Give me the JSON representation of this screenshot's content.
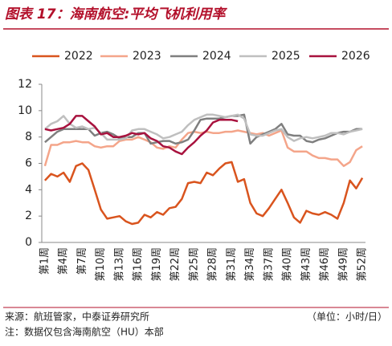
{
  "chart_data": {
    "type": "line",
    "title": "图表 17：海南航空:平均飞机利用率",
    "source": "来源：航班管家，中泰证券研究所",
    "unit": "（单位：小时/日）",
    "note": "注：数据仅包含海南航空（HU）本部",
    "categories": [
      "第1周",
      null,
      null,
      "第4周",
      null,
      null,
      "第7周",
      null,
      null,
      "第10周",
      null,
      null,
      "第13周",
      null,
      null,
      "第16周",
      null,
      null,
      "第19周",
      null,
      null,
      "第22周",
      null,
      null,
      "第25周",
      null,
      null,
      "第28周",
      null,
      null,
      "第31周",
      null,
      null,
      "第34周",
      null,
      null,
      "第37周",
      null,
      null,
      "第40周",
      null,
      null,
      "第43周",
      null,
      null,
      "第46周",
      null,
      null,
      "第49周",
      null,
      null,
      "第52周"
    ],
    "ylim": [
      0,
      12
    ],
    "yticks": [
      0,
      2,
      4,
      6,
      8,
      10,
      12
    ],
    "grid": false,
    "series": [
      {
        "name": "2022",
        "color": "#d9541e",
        "values": [
          4.7,
          5.2,
          5.0,
          5.3,
          4.6,
          5.8,
          6.0,
          5.5,
          4.0,
          2.5,
          1.8,
          1.9,
          2.0,
          1.6,
          1.4,
          1.5,
          2.1,
          1.9,
          2.3,
          2.1,
          2.6,
          2.7,
          3.3,
          4.5,
          4.6,
          4.5,
          5.3,
          5.1,
          5.6,
          6.0,
          6.1,
          4.6,
          4.8,
          3.0,
          2.2,
          2.0,
          2.6,
          3.3,
          4.0,
          3.0,
          1.9,
          1.5,
          2.4,
          2.2,
          2.1,
          2.3,
          2.1,
          1.8,
          3.0,
          4.7,
          4.1,
          4.9
        ]
      },
      {
        "name": "2023",
        "color": "#f4a58a",
        "values": [
          5.8,
          7.4,
          7.4,
          7.6,
          7.6,
          7.7,
          7.6,
          7.6,
          7.3,
          7.2,
          7.3,
          7.3,
          7.7,
          7.8,
          7.8,
          8.0,
          7.8,
          7.6,
          7.2,
          7.1,
          7.3,
          7.2,
          7.8,
          8.3,
          8.4,
          8.3,
          8.4,
          8.3,
          8.3,
          8.4,
          8.4,
          8.5,
          8.4,
          8.3,
          8.2,
          8.3,
          8.1,
          8.3,
          8.5,
          7.2,
          6.9,
          6.9,
          6.9,
          6.6,
          6.4,
          6.4,
          6.3,
          6.3,
          5.8,
          6.1,
          7.0,
          7.3
        ]
      },
      {
        "name": "2024",
        "color": "#7f7f7f",
        "values": [
          7.6,
          8.0,
          8.4,
          8.6,
          8.6,
          8.6,
          8.6,
          8.6,
          8.1,
          8.3,
          8.4,
          8.2,
          7.9,
          8.0,
          8.0,
          8.3,
          8.3,
          7.5,
          7.6,
          7.7,
          7.7,
          7.5,
          7.6,
          7.8,
          8.5,
          9.3,
          9.4,
          9.4,
          9.4,
          9.5,
          9.6,
          9.6,
          9.7,
          7.5,
          8.0,
          8.2,
          8.4,
          8.6,
          9.0,
          8.2,
          8.1,
          8.1,
          7.7,
          7.6,
          7.8,
          7.9,
          8.1,
          8.3,
          8.4,
          8.4,
          8.6,
          8.6
        ]
      },
      {
        "name": "2025",
        "color": "#bfbfbf",
        "values": [
          8.6,
          9.0,
          9.2,
          9.6,
          9.0,
          8.7,
          8.8,
          8.6,
          8.7,
          8.3,
          7.8,
          7.8,
          7.8,
          7.9,
          8.5,
          8.6,
          8.6,
          8.4,
          8.2,
          7.9,
          8.0,
          8.2,
          8.4,
          8.9,
          9.3,
          9.5,
          9.7,
          9.7,
          9.6,
          9.5,
          9.6,
          9.7,
          9.4,
          8.2,
          8.1,
          8.1,
          8.3,
          8.5,
          8.6,
          8.0,
          7.7,
          7.9,
          8.0,
          7.9,
          8.0,
          8.1,
          8.3,
          8.3,
          8.2,
          8.4,
          8.5,
          8.6
        ]
      },
      {
        "name": "2026",
        "color": "#a8123e",
        "values": [
          8.6,
          8.5,
          8.6,
          8.7,
          9.0,
          9.6,
          9.6,
          9.2,
          8.8,
          8.2,
          8.3,
          8.0,
          8.0,
          8.1,
          8.3,
          8.2,
          8.3,
          7.9,
          7.7,
          7.3,
          7.2,
          6.9,
          6.7,
          7.2,
          7.6,
          8.1,
          8.5,
          9.1,
          9.3,
          9.3,
          9.3,
          9.2,
          null,
          null,
          null,
          null,
          null,
          null,
          null,
          null,
          null,
          null,
          null,
          null,
          null,
          null,
          null,
          null,
          null,
          null,
          null,
          null
        ]
      }
    ]
  }
}
